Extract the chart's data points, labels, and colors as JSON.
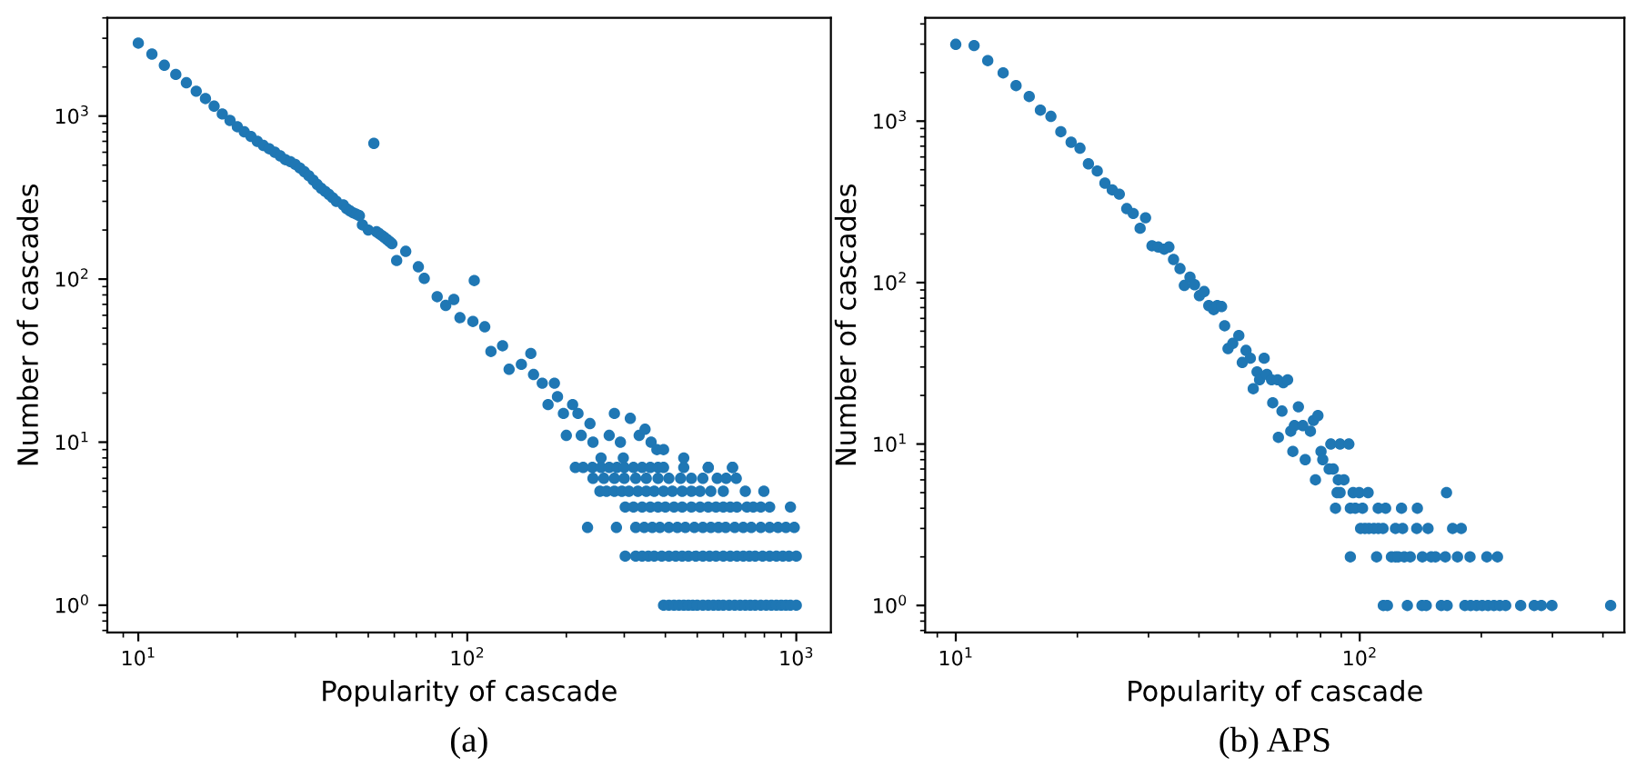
{
  "chart_data": [
    {
      "type": "scatter",
      "xlabel": "Popularity of cascade",
      "ylabel": "Number of cascades",
      "annotations": [
        "(a)"
      ],
      "log": "xy",
      "marker": "circle",
      "xlim": [
        8.05,
        1274
      ],
      "ylim": [
        0.68,
        4000
      ],
      "xticks": [
        {
          "value": 10,
          "label": "10$^{1}$"
        },
        {
          "value": 100,
          "label": "10$^{2}$"
        },
        {
          "value": 1000,
          "label": "10$^{3}$"
        }
      ],
      "yticks": [
        {
          "value": 1,
          "label": "10$^{0}$"
        },
        {
          "value": 10,
          "label": "10$^{1}$"
        },
        {
          "value": 100,
          "label": "10$^{2}$"
        },
        {
          "value": 1000,
          "label": "10$^{3}$"
        }
      ],
      "series": [
        {
          "color": "#1f77b4",
          "x": [
            10,
            11,
            12,
            13,
            14,
            15,
            16,
            17,
            18,
            19,
            20,
            21,
            22,
            23,
            24,
            25,
            26,
            27,
            28,
            29,
            30,
            31,
            32,
            33,
            34,
            35,
            36,
            37,
            38,
            39,
            40,
            42,
            43,
            44,
            45,
            46,
            47,
            48,
            50,
            52,
            53,
            54,
            55,
            56,
            57,
            58,
            59,
            61,
            65,
            71,
            74,
            81,
            86,
            91,
            95,
            104,
            105,
            113,
            118,
            128,
            134,
            146,
            156,
            159,
            169,
            176,
            184,
            188,
            196,
            200,
            209,
            217,
            222,
            236,
            241,
            255,
            270,
            280,
            292,
            298,
            313,
            333,
            347,
            362,
            377,
            395,
            455,
            540,
            640,
            395,
            410,
            425,
            440,
            455,
            470,
            485,
            500,
            520,
            540,
            560,
            580,
            600,
            625,
            650,
            675,
            700,
            725,
            750,
            780,
            810,
            840,
            870,
            900,
            930,
            960,
            1000,
            302,
            325,
            340,
            355,
            370,
            390,
            410,
            430,
            450,
            470,
            495,
            520,
            545,
            570,
            600,
            630,
            660,
            690,
            720,
            750,
            790,
            830,
            870,
            910,
            950,
            1000,
            232,
            284,
            325,
            345,
            365,
            385,
            410,
            435,
            460,
            490,
            520,
            550,
            580,
            610,
            650,
            690,
            730,
            780,
            830,
            880,
            930,
            986,
            302,
            320,
            340,
            360,
            380,
            400,
            425,
            450,
            480,
            510,
            540,
            570,
            600,
            630,
            660,
            708,
            740,
            780,
            830,
            960,
            253,
            265,
            280,
            295,
            310,
            330,
            350,
            370,
            395,
            420,
            450,
            480,
            510,
            550,
            600,
            700,
            797,
            241,
            260,
            280,
            300,
            325,
            350,
            380,
            410,
            445,
            480,
            520,
            575,
            612,
            657,
            213,
            225,
            240,
            255,
            270,
            285,
            300,
            320,
            340,
            360,
            380,
            395,
            455,
            540,
            640
          ],
          "values": [
            2800,
            2400,
            2050,
            1800,
            1600,
            1420,
            1280,
            1150,
            1030,
            940,
            860,
            800,
            750,
            700,
            660,
            630,
            600,
            570,
            540,
            525,
            505,
            480,
            455,
            430,
            405,
            380,
            360,
            345,
            330,
            315,
            300,
            285,
            270,
            262,
            255,
            250,
            245,
            215,
            200,
            680,
            195,
            190,
            185,
            180,
            175,
            170,
            165,
            130,
            148,
            119,
            101,
            78,
            69,
            75,
            58,
            55,
            98,
            51,
            36,
            39,
            28,
            30,
            35,
            26,
            23,
            17,
            23,
            19,
            15,
            11,
            17,
            15,
            11,
            13,
            10,
            8,
            11,
            15,
            10,
            8,
            14,
            11,
            12,
            10,
            9,
            9,
            8,
            7,
            7,
            1,
            1,
            1,
            1,
            1,
            1,
            1,
            1,
            1,
            1,
            1,
            1,
            1,
            1,
            1,
            1,
            1,
            1,
            1,
            1,
            1,
            1,
            1,
            1,
            1,
            1,
            1,
            2,
            2,
            2,
            2,
            2,
            2,
            2,
            2,
            2,
            2,
            2,
            2,
            2,
            2,
            2,
            2,
            2,
            2,
            2,
            2,
            2,
            2,
            2,
            2,
            2,
            2,
            3,
            3,
            3,
            3,
            3,
            3,
            3,
            3,
            3,
            3,
            3,
            3,
            3,
            3,
            3,
            3,
            3,
            3,
            3,
            3,
            3,
            3,
            4,
            4,
            4,
            4,
            4,
            4,
            4,
            4,
            4,
            4,
            4,
            4,
            4,
            4,
            4,
            4,
            4,
            4,
            4,
            4,
            5,
            5,
            5,
            5,
            5,
            5,
            5,
            5,
            5,
            5,
            5,
            5,
            5,
            5,
            5,
            5,
            5,
            6,
            6,
            6,
            6,
            6,
            6,
            6,
            6,
            6,
            6,
            6,
            6,
            6,
            6,
            7,
            7,
            7,
            7,
            7,
            7,
            7,
            7,
            7,
            7,
            7,
            7,
            7,
            7,
            7
          ]
        }
      ]
    },
    {
      "type": "scatter",
      "xlabel": "Popularity of cascade",
      "ylabel": "Number of cascades",
      "annotations": [
        "(b) APS"
      ],
      "log": "xy",
      "marker": "circle",
      "xlim": [
        8.4,
        452
      ],
      "ylim": [
        0.68,
        4360
      ],
      "xticks": [
        {
          "value": 10,
          "label": "10$^{1}$"
        },
        {
          "value": 100,
          "label": "10$^{2}$"
        }
      ],
      "yticks": [
        {
          "value": 1,
          "label": "10$^{0}$"
        },
        {
          "value": 10,
          "label": "10$^{1}$"
        },
        {
          "value": 100,
          "label": "10$^{2}$"
        },
        {
          "value": 1000,
          "label": "10$^{3}$"
        }
      ],
      "series": [
        {
          "color": "#1f77b4",
          "x": [
            10,
            11.1,
            12,
            13.1,
            14.1,
            15.2,
            16.2,
            17.2,
            18.2,
            19.3,
            20.3,
            21.3,
            22.4,
            23.4,
            24.4,
            25.4,
            26.5,
            27.5,
            28.6,
            29.5,
            30.6,
            31.7,
            32.8,
            33.7,
            34.6,
            35.9,
            36.8,
            38,
            39,
            40.1,
            41.2,
            42.3,
            43.5,
            44.4,
            45.5,
            46.3,
            47.2,
            48.5,
            50.2,
            51.2,
            52.3,
            53.6,
            54.5,
            55.7,
            56.5,
            58,
            58.9,
            60.5,
            62.6,
            64.7,
            66.3,
            60.9,
            64.2,
            62.9,
            67.5,
            68.9,
            70.5,
            72.3,
            75.5,
            76.8,
            78.8,
            68.3,
            73.3,
            77.7,
            80.2,
            81,
            84,
            86,
            84.8,
            89.4,
            94,
            88.5,
            91.4,
            87.9,
            89.4,
            96.3,
            99.7,
            104.9,
            164,
            87.1,
            94.8,
            97.5,
            101.6,
            111.1,
            115.9,
            126.9,
            138.9,
            100.5,
            103,
            105.4,
            108.4,
            111.2,
            114.2,
            122.6,
            127.7,
            138.4,
            147.6,
            169.8,
            178.4,
            94.8,
            110.1,
            119.8,
            122.6,
            124.6,
            128.9,
            133.4,
            142.9,
            150.3,
            154,
            162.9,
            174.6,
            187.5,
            206.4,
            219.3,
            114.4,
            117.1,
            131.2,
            142.6,
            146.1,
            159.2,
            164.6,
            182.1,
            188.2,
            194.6,
            201,
            207.8,
            214.9,
            222.2,
            229.8,
            250.3,
            270.4,
            281.6,
            299.1,
            418
          ],
          "values": [
            2990,
            2940,
            2370,
            1990,
            1660,
            1420,
            1170,
            1070,
            860,
            740,
            680,
            544,
            491,
            413,
            375,
            353,
            287,
            268,
            217,
            252,
            169,
            166,
            161,
            166,
            139,
            122,
            96,
            108,
            97,
            83,
            88,
            72,
            68,
            72,
            71,
            54,
            39,
            42,
            47,
            32,
            38,
            34,
            22,
            28,
            25,
            34,
            27,
            25,
            25,
            24,
            25,
            18,
            16,
            11,
            12,
            13,
            17,
            13,
            12,
            14,
            15,
            9,
            8,
            6,
            9,
            8,
            7,
            7,
            10,
            10,
            10,
            6,
            6,
            5,
            5,
            5,
            5,
            5,
            5,
            4,
            4,
            4,
            4,
            4,
            4,
            4,
            4,
            3,
            3,
            3,
            3,
            3,
            3,
            3,
            3,
            3,
            3,
            3,
            3,
            2,
            2,
            2,
            2,
            2,
            2,
            2,
            2,
            2,
            2,
            2,
            2,
            2,
            2,
            2,
            1,
            1,
            1,
            1,
            1,
            1,
            1,
            1,
            1,
            1,
            1,
            1,
            1,
            1,
            1,
            1,
            1,
            1,
            1,
            1
          ]
        }
      ]
    }
  ]
}
